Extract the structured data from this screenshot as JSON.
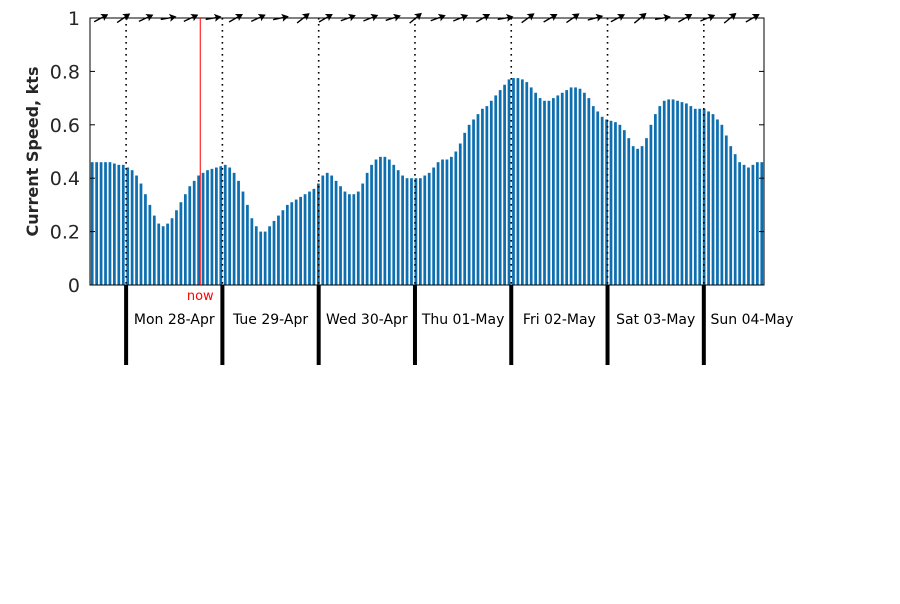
{
  "chart_data": {
    "type": "bar",
    "title": "",
    "xlabel": "",
    "ylabel": "Current Speed, kts",
    "ylim": [
      0,
      1
    ],
    "yticks": [
      0,
      0.2,
      0.4,
      0.6,
      0.8,
      1
    ],
    "ytick_labels": [
      "0",
      "0.2",
      "0.4",
      "0.6",
      "0.8",
      "1"
    ],
    "bar_color": "#0e6fb0",
    "now_color": "#ff0000",
    "now_label": "now",
    "now_time": 0.77,
    "start_time": -0.375,
    "end_time": 6.625,
    "day_labels": [
      "Mon 28-Apr",
      "Tue 29-Apr",
      "Wed 30-Apr",
      "Thu 01-May",
      "Fri 02-May",
      "Sat 03-May",
      "Sun 04-May"
    ],
    "series": [
      {
        "values": [
          0.46,
          0.46,
          0.46,
          0.46,
          0.46,
          0.455,
          0.45,
          0.45,
          0.44,
          0.43,
          0.41,
          0.38,
          0.34,
          0.3,
          0.26,
          0.23,
          0.22,
          0.23,
          0.25,
          0.28,
          0.31,
          0.34,
          0.37,
          0.39,
          0.41,
          0.42,
          0.43,
          0.435,
          0.44,
          0.445,
          0.45,
          0.44,
          0.42,
          0.39,
          0.35,
          0.3,
          0.25,
          0.22,
          0.2,
          0.2,
          0.22,
          0.24,
          0.26,
          0.28,
          0.3,
          0.31,
          0.32,
          0.33,
          0.34,
          0.35,
          0.36,
          0.38,
          0.41,
          0.42,
          0.41,
          0.39,
          0.37,
          0.35,
          0.34,
          0.34,
          0.35,
          0.38,
          0.42,
          0.45,
          0.47,
          0.48,
          0.48,
          0.47,
          0.45,
          0.43,
          0.41,
          0.4,
          0.4,
          0.4,
          0.4,
          0.41,
          0.42,
          0.44,
          0.46,
          0.47,
          0.47,
          0.48,
          0.5,
          0.53,
          0.57,
          0.6,
          0.62,
          0.64,
          0.66,
          0.67,
          0.69,
          0.71,
          0.73,
          0.75,
          0.77,
          0.775,
          0.775,
          0.77,
          0.76,
          0.74,
          0.72,
          0.7,
          0.69,
          0.69,
          0.7,
          0.71,
          0.72,
          0.73,
          0.74,
          0.74,
          0.735,
          0.72,
          0.7,
          0.67,
          0.65,
          0.63,
          0.62,
          0.615,
          0.61,
          0.6,
          0.58,
          0.55,
          0.52,
          0.51,
          0.52,
          0.55,
          0.6,
          0.64,
          0.67,
          0.69,
          0.695,
          0.695,
          0.69,
          0.685,
          0.68,
          0.67,
          0.66,
          0.66,
          0.66,
          0.65,
          0.64,
          0.62,
          0.6,
          0.56,
          0.52,
          0.49,
          0.46,
          0.45,
          0.44,
          0.45,
          0.46,
          0.46
        ]
      }
    ],
    "direction_arrows": [
      -28,
      -35,
      -25,
      -10,
      -25,
      -10,
      -30,
      -25,
      -12,
      -38,
      -30,
      -20,
      -22,
      -18,
      -40,
      -20,
      -22,
      -30,
      -10,
      -36,
      -30,
      -35,
      -15,
      -28,
      -40,
      -10,
      -30,
      -22,
      -40,
      -30
    ]
  }
}
